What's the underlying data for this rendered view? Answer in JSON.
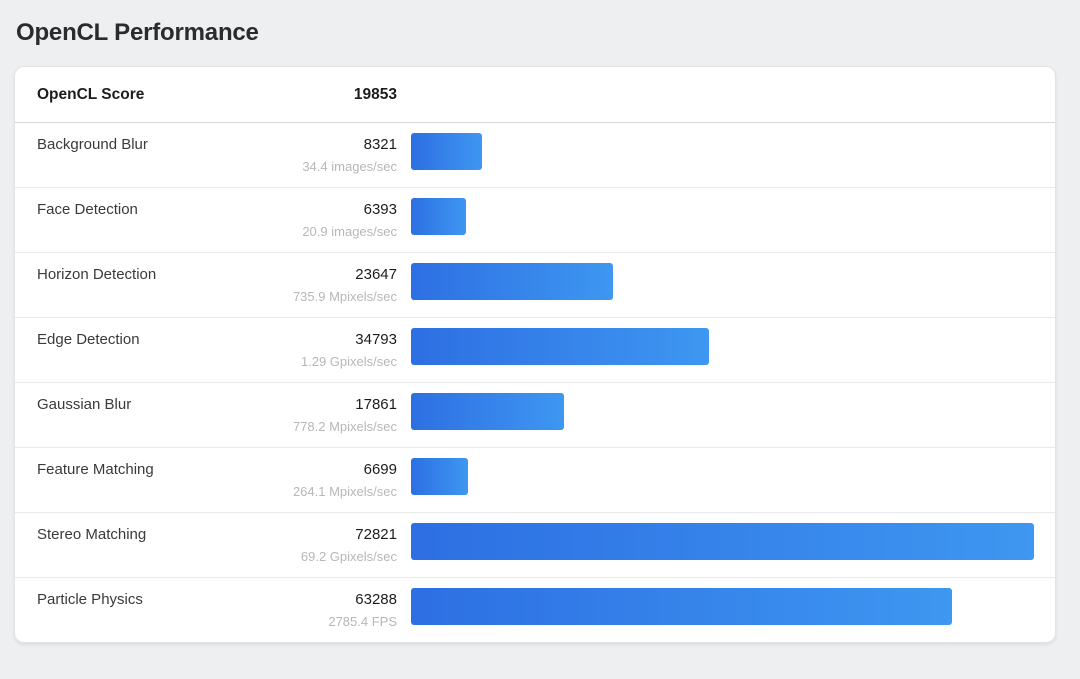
{
  "title": "OpenCL Performance",
  "chart_data": {
    "type": "bar",
    "orientation": "horizontal",
    "title": "OpenCL Performance",
    "header": {
      "label": "OpenCL Score",
      "score": "19853"
    },
    "rows": [
      {
        "name": "Background Blur",
        "score": 8321,
        "rate": "34.4 images/sec"
      },
      {
        "name": "Face Detection",
        "score": 6393,
        "rate": "20.9 images/sec"
      },
      {
        "name": "Horizon Detection",
        "score": 23647,
        "rate": "735.9 Mpixels/sec"
      },
      {
        "name": "Edge Detection",
        "score": 34793,
        "rate": "1.29 Gpixels/sec"
      },
      {
        "name": "Gaussian Blur",
        "score": 17861,
        "rate": "778.2 Mpixels/sec"
      },
      {
        "name": "Feature Matching",
        "score": 6699,
        "rate": "264.1 Mpixels/sec"
      },
      {
        "name": "Stereo Matching",
        "score": 72821,
        "rate": "69.2 Gpixels/sec"
      },
      {
        "name": "Particle Physics",
        "score": 63288,
        "rate": "2785.4 FPS"
      }
    ],
    "xlim": [
      0,
      72821
    ],
    "bar_color_start": "#2d6fe3",
    "bar_color_end": "#3e97f1",
    "grid": false,
    "legend": false
  }
}
